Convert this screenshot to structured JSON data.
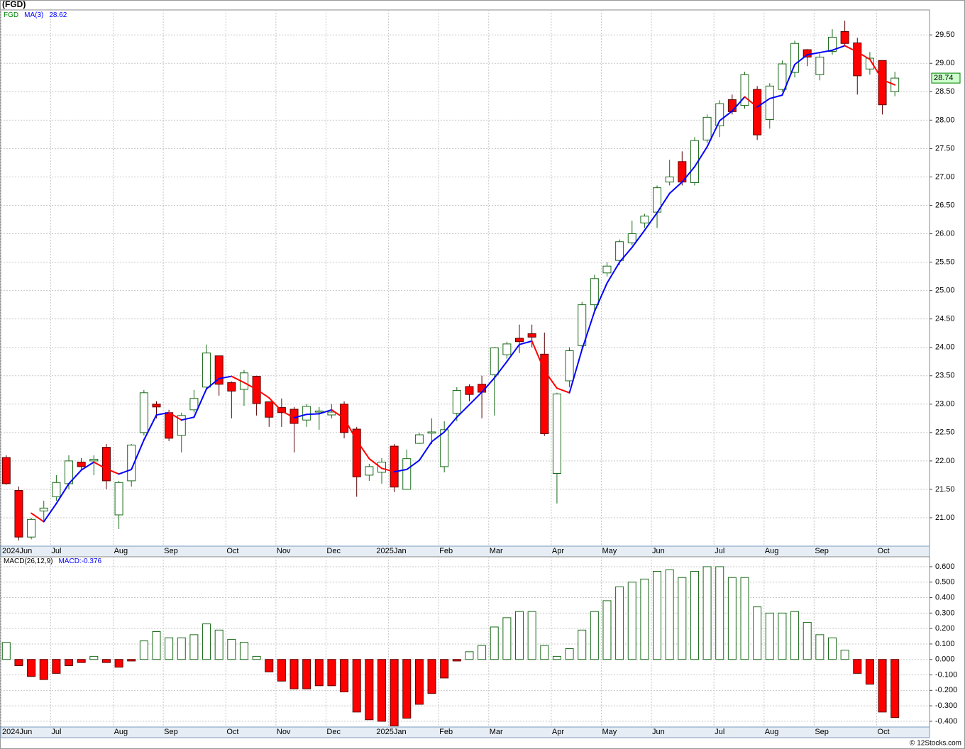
{
  "chart_data": [
    {
      "type": "candlestick",
      "title": "(FGD)",
      "name": "FGD",
      "name_color": "#008000",
      "categories": [
        "2024Jun",
        null,
        null,
        null,
        "Jul",
        null,
        null,
        null,
        null,
        "Aug",
        null,
        null,
        null,
        "Sep",
        null,
        null,
        null,
        null,
        "Oct",
        null,
        null,
        null,
        "Nov",
        null,
        null,
        null,
        "Dec",
        null,
        null,
        null,
        null,
        "2025Jan",
        null,
        null,
        null,
        "Feb",
        null,
        null,
        null,
        "Mar",
        null,
        null,
        null,
        null,
        "Apr",
        null,
        null,
        null,
        "May",
        null,
        null,
        null,
        "Jun",
        null,
        null,
        null,
        null,
        "Jul",
        null,
        null,
        null,
        "Aug",
        null,
        null,
        null,
        "Sep",
        null,
        null,
        null,
        null,
        "Oct",
        null
      ],
      "open": [
        22.06,
        21.48,
        20.66,
        21.12,
        21.37,
        21.6,
        21.98,
        22.0,
        22.24,
        21.05,
        21.65,
        22.5,
        23.0,
        22.85,
        22.45,
        22.9,
        23.3,
        23.85,
        23.38,
        23.26,
        23.49,
        23.04,
        22.94,
        22.91,
        22.72,
        22.86,
        22.81,
        23.0,
        22.56,
        21.75,
        21.8,
        22.26,
        21.5,
        22.31,
        22.49,
        21.9,
        22.84,
        23.31,
        23.35,
        23.52,
        23.87,
        24.16,
        24.24,
        23.88,
        21.78,
        23.41,
        24.03,
        24.75,
        25.31,
        25.53,
        25.84,
        26.19,
        26.38,
        26.91,
        27.27,
        26.9,
        27.65,
        27.9,
        28.36,
        28.26,
        28.54,
        28.01,
        28.54,
        28.84,
        29.24,
        28.8,
        29.21,
        29.56,
        29.36,
        28.9,
        29.05,
        28.5
      ],
      "high": [
        22.1,
        21.55,
        21.0,
        21.3,
        21.75,
        22.1,
        22.05,
        22.1,
        22.3,
        21.65,
        22.3,
        23.25,
        23.05,
        22.9,
        22.85,
        23.25,
        24.05,
        23.85,
        23.4,
        23.6,
        23.5,
        23.05,
        23.1,
        22.95,
        23.0,
        22.95,
        23.0,
        23.05,
        22.6,
        21.95,
        22.05,
        22.3,
        22.2,
        22.5,
        22.75,
        22.7,
        23.3,
        23.35,
        23.5,
        24.0,
        24.1,
        24.4,
        24.4,
        24.26,
        23.2,
        24.0,
        24.8,
        25.28,
        25.5,
        25.9,
        26.23,
        26.35,
        26.85,
        27.3,
        27.45,
        27.7,
        28.1,
        28.35,
        28.45,
        28.85,
        28.6,
        28.65,
        29.05,
        29.4,
        29.25,
        29.2,
        29.6,
        29.75,
        29.45,
        29.2,
        29.05,
        28.85
      ],
      "low": [
        21.58,
        20.6,
        20.62,
        20.95,
        21.3,
        21.5,
        21.85,
        21.75,
        21.5,
        20.8,
        21.55,
        22.45,
        22.75,
        22.35,
        22.15,
        22.85,
        23.25,
        23.15,
        22.75,
        22.97,
        22.8,
        22.6,
        22.6,
        22.15,
        22.6,
        22.55,
        22.75,
        22.4,
        21.37,
        21.65,
        21.6,
        21.45,
        21.5,
        22.3,
        22.3,
        21.8,
        22.7,
        23.05,
        22.75,
        22.8,
        23.8,
        23.9,
        24.0,
        22.44,
        21.25,
        23.3,
        23.95,
        24.6,
        25.25,
        25.45,
        25.8,
        26.1,
        26.1,
        26.85,
        26.85,
        26.85,
        27.6,
        27.7,
        28.1,
        28.2,
        27.65,
        27.85,
        28.5,
        28.75,
        28.95,
        28.7,
        29.15,
        29.3,
        28.45,
        28.8,
        28.1,
        28.42
      ],
      "close": [
        21.6,
        20.66,
        20.97,
        21.17,
        21.62,
        22.0,
        21.9,
        22.03,
        21.65,
        21.62,
        22.28,
        23.2,
        22.95,
        22.4,
        22.8,
        23.1,
        23.9,
        23.35,
        23.23,
        23.55,
        23.01,
        22.77,
        22.85,
        22.66,
        22.96,
        22.88,
        22.86,
        22.5,
        21.72,
        21.9,
        21.98,
        21.54,
        22.04,
        22.46,
        22.51,
        22.55,
        23.24,
        23.17,
        23.21,
        23.99,
        24.06,
        24.1,
        24.18,
        22.48,
        23.18,
        23.94,
        24.75,
        25.21,
        25.43,
        25.86,
        26.0,
        26.31,
        26.81,
        27.0,
        26.91,
        27.64,
        28.05,
        28.29,
        28.15,
        28.8,
        27.74,
        28.6,
        28.99,
        29.35,
        29.11,
        29.11,
        29.46,
        29.35,
        28.78,
        29.09,
        28.27,
        28.74
      ],
      "up_color": "#ffffff",
      "up_edge": "#1a6b1a",
      "down_color": "#ff0000",
      "down_edge": "#5a0000",
      "ma": {
        "name": "MA(3)",
        "color": "#0000ff",
        "up_color": "#0000ff",
        "down_color": "#ff0000",
        "values": [
          null,
          null,
          21.08,
          20.93,
          21.25,
          21.6,
          21.84,
          21.98,
          21.86,
          21.77,
          21.85,
          22.37,
          22.81,
          22.85,
          22.72,
          22.77,
          23.27,
          23.45,
          23.49,
          23.38,
          23.26,
          23.11,
          22.88,
          22.76,
          22.82,
          22.83,
          22.9,
          22.75,
          22.36,
          22.04,
          21.87,
          21.81,
          21.85,
          22.01,
          22.34,
          22.51,
          22.77,
          22.99,
          23.21,
          23.46,
          23.75,
          24.05,
          24.11,
          23.59,
          23.28,
          23.2,
          23.96,
          24.63,
          25.13,
          25.5,
          25.76,
          26.06,
          26.37,
          26.71,
          26.91,
          27.18,
          27.53,
          27.99,
          28.16,
          28.41,
          28.23,
          28.38,
          28.44,
          28.98,
          29.15,
          29.19,
          29.23,
          29.31,
          29.2,
          29.07,
          28.71,
          28.62
        ]
      },
      "ylim": [
        20.5,
        29.94
      ],
      "yticks": [
        {
          "value": 21,
          "label": "21.00"
        },
        {
          "value": 21.5,
          "label": "21.50"
        },
        {
          "value": 22,
          "label": "22.00"
        },
        {
          "value": 22.5,
          "label": "22.50"
        },
        {
          "value": 23,
          "label": "23.00"
        },
        {
          "value": 23.5,
          "label": "23.50"
        },
        {
          "value": 24,
          "label": "24.00"
        },
        {
          "value": 24.5,
          "label": "24.50"
        },
        {
          "value": 25,
          "label": "25.00"
        },
        {
          "value": 25.5,
          "label": "25.50"
        },
        {
          "value": 26,
          "label": "26.00"
        },
        {
          "value": 26.5,
          "label": "26.50"
        },
        {
          "value": 27,
          "label": "27.00"
        },
        {
          "value": 27.5,
          "label": "27.50"
        },
        {
          "value": 28,
          "label": "28.00"
        },
        {
          "value": 28.5,
          "label": "28.50"
        },
        {
          "value": 29,
          "label": "29.00"
        },
        {
          "value": 29.5,
          "label": "29.50"
        }
      ],
      "grid": true
    },
    {
      "type": "bar",
      "title": "MACD(26,12,9)",
      "categories": [
        "2024Jun",
        null,
        null,
        null,
        "Jul",
        null,
        null,
        null,
        null,
        "Aug",
        null,
        null,
        null,
        "Sep",
        null,
        null,
        null,
        null,
        "Oct",
        null,
        null,
        null,
        "Nov",
        null,
        null,
        null,
        "Dec",
        null,
        null,
        null,
        null,
        "2025Jan",
        null,
        null,
        null,
        "Feb",
        null,
        null,
        null,
        "Mar",
        null,
        null,
        null,
        null,
        "Apr",
        null,
        null,
        null,
        "May",
        null,
        null,
        null,
        "Jun",
        null,
        null,
        null,
        null,
        "Jul",
        null,
        null,
        null,
        "Aug",
        null,
        null,
        null,
        "Sep",
        null,
        null,
        null,
        null,
        "Oct",
        null
      ],
      "series": [
        {
          "name": "MACD:",
          "color": "#0000ff",
          "up_color": "#ffffff",
          "up_edge": "#1a6b1a",
          "down_color": "#ff0000",
          "down_edge": "#5a0000",
          "values": [
            0.11,
            -0.04,
            -0.11,
            -0.13,
            -0.09,
            -0.04,
            -0.02,
            0.02,
            -0.02,
            -0.05,
            -0.01,
            0.12,
            0.18,
            0.14,
            0.14,
            0.16,
            0.23,
            0.19,
            0.13,
            0.11,
            0.02,
            -0.08,
            -0.14,
            -0.19,
            -0.19,
            -0.17,
            -0.17,
            -0.21,
            -0.34,
            -0.39,
            -0.4,
            -0.43,
            -0.38,
            -0.29,
            -0.22,
            -0.12,
            -0.01,
            0.05,
            0.09,
            0.21,
            0.27,
            0.31,
            0.31,
            0.09,
            0.02,
            0.07,
            0.19,
            0.31,
            0.38,
            0.47,
            0.5,
            0.52,
            0.57,
            0.58,
            0.53,
            0.57,
            0.6,
            0.6,
            0.53,
            0.53,
            0.34,
            0.3,
            0.3,
            0.31,
            0.24,
            0.16,
            0.14,
            0.06,
            -0.09,
            -0.16,
            -0.34,
            -0.376
          ]
        }
      ],
      "ylim": [
        -0.437,
        0.664
      ],
      "yticks": [
        {
          "value": -0.4,
          "label": "-0.400"
        },
        {
          "value": -0.3,
          "label": "-0.300"
        },
        {
          "value": -0.2,
          "label": "-0.200"
        },
        {
          "value": -0.1,
          "label": "-0.100"
        },
        {
          "value": 0,
          "label": "0.000"
        },
        {
          "value": 0.1,
          "label": "0.100"
        },
        {
          "value": 0.2,
          "label": "0.200"
        },
        {
          "value": 0.3,
          "label": "0.300"
        },
        {
          "value": 0.4,
          "label": "0.400"
        },
        {
          "value": 0.5,
          "label": "0.500"
        },
        {
          "value": 0.6,
          "label": "0.600"
        }
      ],
      "grid": true
    }
  ],
  "credit": "© 12Stocks.com"
}
